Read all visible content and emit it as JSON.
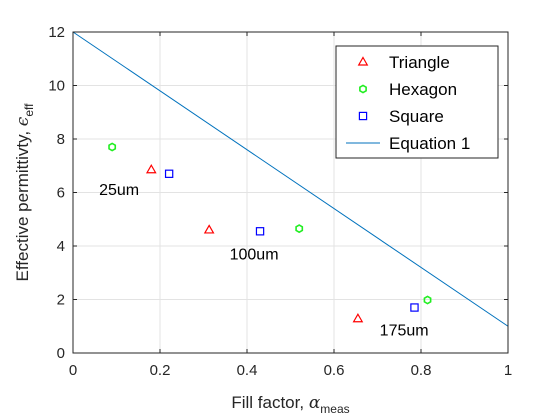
{
  "chart_data": {
    "type": "scatter",
    "xlabel": {
      "text": "Fill factor, ",
      "symbol": "α",
      "subscript": "meas"
    },
    "ylabel": {
      "text": "Effective permittivty, ",
      "symbol": "ϵ",
      "subscript": "eff"
    },
    "xlim": [
      0,
      1
    ],
    "ylim": [
      0,
      12
    ],
    "xticks": [
      0,
      0.2,
      0.4,
      0.6,
      0.8,
      1
    ],
    "xtick_labels": [
      "0",
      "0.2",
      "0.4",
      "0.6",
      "0.8",
      "1"
    ],
    "yticks": [
      0,
      2,
      4,
      6,
      8,
      10,
      12
    ],
    "ytick_labels": [
      "0",
      "2",
      "4",
      "6",
      "8",
      "10",
      "12"
    ],
    "grid": true,
    "legend_position": "top-right",
    "series": [
      {
        "name": "Triangle",
        "marker": "triangle",
        "color": "#ff0000",
        "points": [
          [
            0.18,
            6.85
          ],
          [
            0.313,
            4.6
          ],
          [
            0.655,
            1.28
          ]
        ]
      },
      {
        "name": "Hexagon",
        "marker": "hexagon",
        "color": "#22ee22",
        "points": [
          [
            0.09,
            7.7
          ],
          [
            0.52,
            4.65
          ],
          [
            0.815,
            1.98
          ]
        ]
      },
      {
        "name": "Square",
        "marker": "square",
        "color": "#0000ff",
        "points": [
          [
            0.221,
            6.7
          ],
          [
            0.43,
            4.55
          ],
          [
            0.785,
            1.7
          ]
        ]
      },
      {
        "name": "Equation 1",
        "type": "line",
        "color": "#0072bd",
        "points": [
          [
            0,
            12
          ],
          [
            1,
            1
          ]
        ]
      }
    ],
    "annotations": [
      {
        "text": "25um",
        "x": 0.06,
        "y": 5.9
      },
      {
        "text": "100um",
        "x": 0.36,
        "y": 3.5
      },
      {
        "text": "175um",
        "x": 0.705,
        "y": 0.65
      }
    ]
  }
}
